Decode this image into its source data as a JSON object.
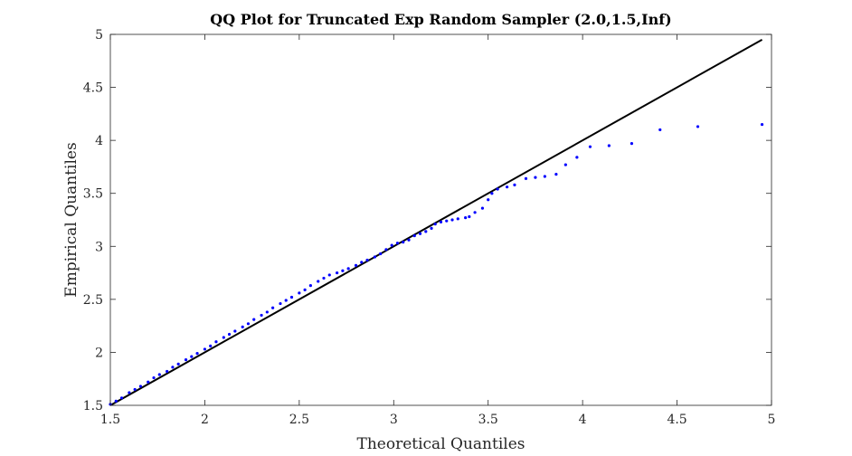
{
  "chart_data": {
    "type": "scatter",
    "title": "QQ Plot for Truncated Exp Random Sampler (2.0,1.5,Inf)",
    "xlabel": "Theoretical Quantiles",
    "ylabel": "Empirical Quantiles",
    "xlim": [
      1.5,
      5
    ],
    "ylim": [
      1.5,
      5
    ],
    "x_ticks": [
      1.5,
      2,
      2.5,
      3,
      3.5,
      4,
      4.5,
      5
    ],
    "y_ticks": [
      1.5,
      2,
      2.5,
      3,
      3.5,
      4,
      4.5,
      5
    ],
    "x_tick_labels": [
      "1.5",
      "2",
      "2.5",
      "3",
      "3.5",
      "4",
      "4.5",
      "5"
    ],
    "y_tick_labels": [
      "1.5",
      "2",
      "2.5",
      "3",
      "3.5",
      "4",
      "4.5",
      "5"
    ],
    "grid": false,
    "reference_line": {
      "x": [
        1.5,
        4.95
      ],
      "y": [
        1.5,
        4.95
      ],
      "color": "#000000"
    },
    "series": [
      {
        "color": "#0000ff",
        "points": [
          [
            1.5,
            1.51
          ],
          [
            1.53,
            1.54
          ],
          [
            1.56,
            1.57
          ],
          [
            1.6,
            1.62
          ],
          [
            1.63,
            1.65
          ],
          [
            1.66,
            1.68
          ],
          [
            1.7,
            1.72
          ],
          [
            1.73,
            1.76
          ],
          [
            1.76,
            1.79
          ],
          [
            1.8,
            1.82
          ],
          [
            1.83,
            1.86
          ],
          [
            1.86,
            1.89
          ],
          [
            1.9,
            1.93
          ],
          [
            1.93,
            1.96
          ],
          [
            1.96,
            1.99
          ],
          [
            2.0,
            2.03
          ],
          [
            2.03,
            2.06
          ],
          [
            2.06,
            2.1
          ],
          [
            2.1,
            2.14
          ],
          [
            2.13,
            2.17
          ],
          [
            2.16,
            2.2
          ],
          [
            2.2,
            2.24
          ],
          [
            2.23,
            2.27
          ],
          [
            2.26,
            2.31
          ],
          [
            2.3,
            2.35
          ],
          [
            2.33,
            2.38
          ],
          [
            2.36,
            2.42
          ],
          [
            2.4,
            2.46
          ],
          [
            2.43,
            2.49
          ],
          [
            2.46,
            2.52
          ],
          [
            2.5,
            2.56
          ],
          [
            2.53,
            2.59
          ],
          [
            2.56,
            2.63
          ],
          [
            2.6,
            2.67
          ],
          [
            2.63,
            2.7
          ],
          [
            2.66,
            2.73
          ],
          [
            2.7,
            2.75
          ],
          [
            2.73,
            2.77
          ],
          [
            2.76,
            2.79
          ],
          [
            2.8,
            2.82
          ],
          [
            2.83,
            2.85
          ],
          [
            2.86,
            2.87
          ],
          [
            2.9,
            2.9
          ],
          [
            2.93,
            2.93
          ],
          [
            2.96,
            2.97
          ],
          [
            2.99,
            3.01
          ],
          [
            3.02,
            3.03
          ],
          [
            3.05,
            3.04
          ],
          [
            3.08,
            3.06
          ],
          [
            3.11,
            3.1
          ],
          [
            3.14,
            3.12
          ],
          [
            3.17,
            3.14
          ],
          [
            3.2,
            3.17
          ],
          [
            3.22,
            3.21
          ],
          [
            3.25,
            3.23
          ],
          [
            3.28,
            3.24
          ],
          [
            3.31,
            3.25
          ],
          [
            3.34,
            3.26
          ],
          [
            3.38,
            3.27
          ],
          [
            3.4,
            3.28
          ],
          [
            3.43,
            3.32
          ],
          [
            3.47,
            3.36
          ],
          [
            3.5,
            3.44
          ],
          [
            3.52,
            3.5
          ],
          [
            3.55,
            3.54
          ],
          [
            3.6,
            3.56
          ],
          [
            3.64,
            3.58
          ],
          [
            3.7,
            3.64
          ],
          [
            3.75,
            3.65
          ],
          [
            3.8,
            3.66
          ],
          [
            3.86,
            3.68
          ],
          [
            3.91,
            3.77
          ],
          [
            3.97,
            3.84
          ],
          [
            4.04,
            3.94
          ],
          [
            4.14,
            3.95
          ],
          [
            4.26,
            3.97
          ],
          [
            4.41,
            4.1
          ],
          [
            4.61,
            4.13
          ],
          [
            4.95,
            4.15
          ]
        ]
      }
    ]
  }
}
